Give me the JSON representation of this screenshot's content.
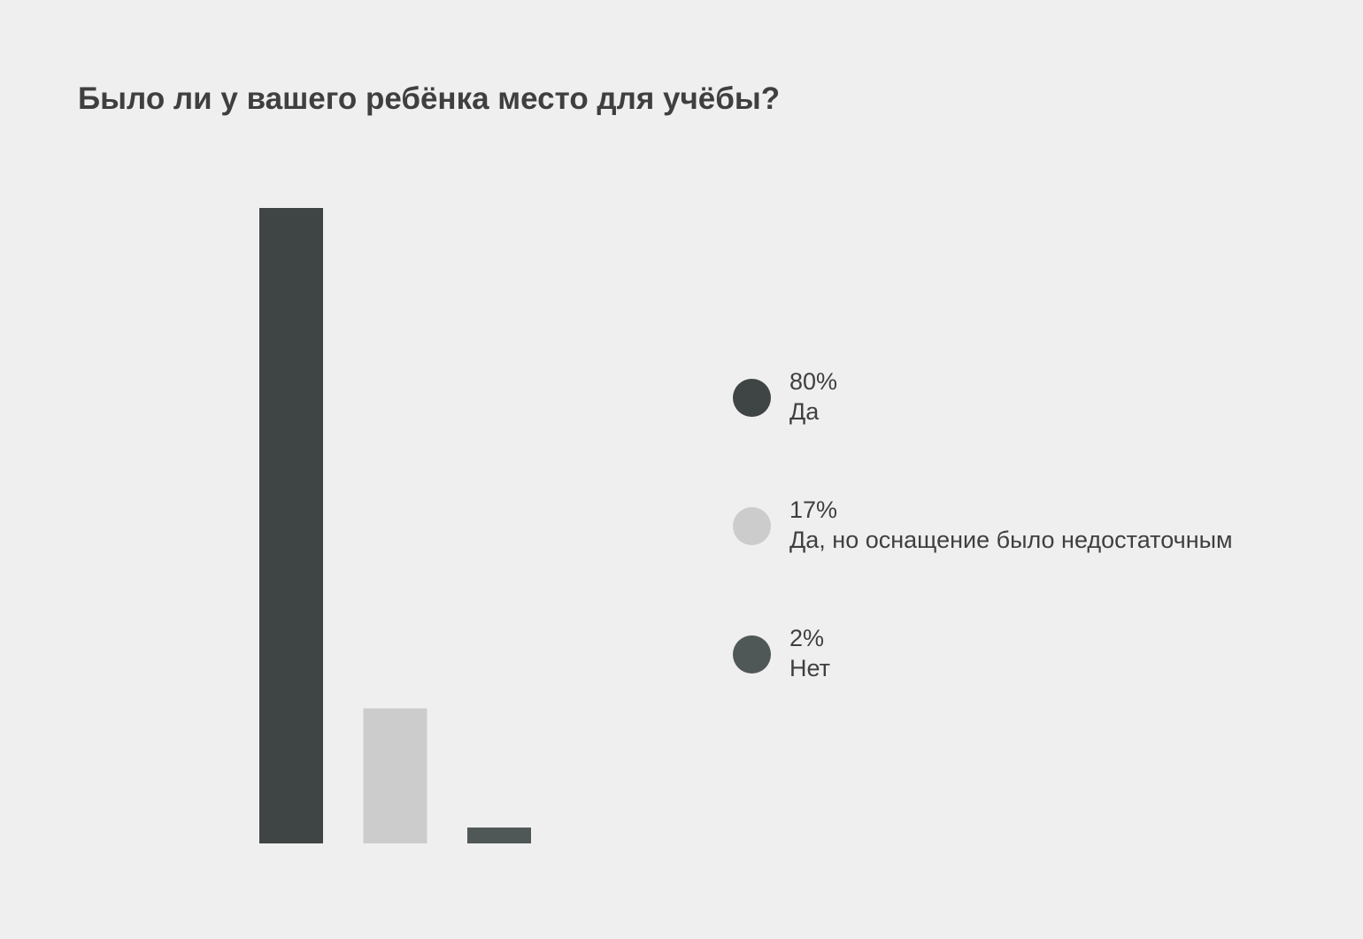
{
  "chart_data": {
    "type": "bar",
    "title": "Было ли у вашего ребёнка место для учёбы?",
    "categories": [
      "Да",
      "Да, но оснащение было недостаточным",
      "Нет"
    ],
    "values": [
      80,
      17,
      2
    ],
    "value_labels": [
      "80%",
      "17%",
      "2%"
    ],
    "colors": [
      "#3f4544",
      "#cccccc",
      "#4f5857"
    ],
    "ylim": [
      0,
      80
    ],
    "grid": false,
    "legend_position": "right",
    "xlabel": "",
    "ylabel": ""
  }
}
